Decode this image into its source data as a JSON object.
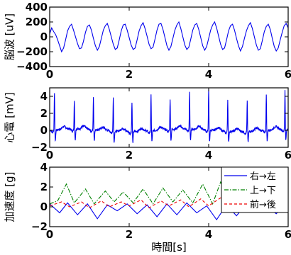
{
  "chart_data": [
    {
      "type": "line",
      "ylabel": "脳波 [uV]",
      "xlim": [
        0,
        6
      ],
      "ylim": [
        -400,
        400
      ],
      "xticks": [
        0,
        2,
        4,
        6
      ],
      "yticks": [
        -400,
        -200,
        0,
        200,
        400
      ],
      "xtick_labels": [
        "0",
        "2",
        "4",
        "6"
      ],
      "ytick_labels": [
        "−400",
        "−200",
        "0",
        "200",
        "400"
      ],
      "legend": "none",
      "series": [
        {
          "color": "#0000ee",
          "x": [
            0.0,
            0.05,
            0.1,
            0.15,
            0.2,
            0.25,
            0.3,
            0.35,
            0.4,
            0.45,
            0.5,
            0.55,
            0.6,
            0.65,
            0.7,
            0.75,
            0.8,
            0.85,
            0.9,
            0.95,
            1.0,
            1.05,
            1.1,
            1.15,
            1.2,
            1.25,
            1.3,
            1.35,
            1.4,
            1.45,
            1.5,
            1.55,
            1.6,
            1.65,
            1.7,
            1.75,
            1.8,
            1.85,
            1.9,
            1.95,
            2.0,
            2.05,
            2.1,
            2.15,
            2.2,
            2.25,
            2.3,
            2.35,
            2.4,
            2.45,
            2.5,
            2.55,
            2.6,
            2.65,
            2.7,
            2.75,
            2.8,
            2.85,
            2.9,
            2.95,
            3.0,
            3.05,
            3.1,
            3.15,
            3.2,
            3.25,
            3.3,
            3.35,
            3.4,
            3.45,
            3.5,
            3.55,
            3.6,
            3.65,
            3.7,
            3.75,
            3.8,
            3.85,
            3.9,
            3.95,
            4.0,
            4.05,
            4.1,
            4.15,
            4.2,
            4.25,
            4.3,
            4.35,
            4.4,
            4.45,
            4.5,
            4.55,
            4.6,
            4.65,
            4.7,
            4.75,
            4.8,
            4.85,
            4.9,
            4.95,
            5.0,
            5.05,
            5.1,
            5.15,
            5.2,
            5.25,
            5.3,
            5.35,
            5.4,
            5.45,
            5.5,
            5.55,
            5.6,
            5.65,
            5.7,
            5.75,
            5.8,
            5.85,
            5.9,
            5.95,
            6.0
          ],
          "y": [
            40,
            120,
            70,
            30,
            -40,
            -120,
            -200,
            -150,
            -40,
            80,
            140,
            170,
            90,
            0,
            -90,
            -160,
            -150,
            -60,
            60,
            140,
            160,
            90,
            -20,
            -120,
            -180,
            -130,
            -20,
            90,
            150,
            180,
            100,
            0,
            -100,
            -170,
            -150,
            -40,
            80,
            160,
            170,
            90,
            -10,
            -110,
            -170,
            -150,
            -40,
            80,
            150,
            190,
            110,
            10,
            -100,
            -160,
            -140,
            -30,
            90,
            170,
            180,
            100,
            -10,
            -120,
            -180,
            -130,
            -20,
            90,
            160,
            200,
            110,
            0,
            -110,
            -170,
            -140,
            -30,
            90,
            160,
            180,
            100,
            -10,
            -120,
            -180,
            -130,
            -20,
            90,
            160,
            200,
            120,
            10,
            -100,
            -170,
            -150,
            -40,
            80,
            150,
            170,
            90,
            -20,
            -120,
            -190,
            -130,
            -20,
            80,
            150,
            190,
            110,
            0,
            -110,
            -180,
            -160,
            -50,
            70,
            140,
            170,
            100,
            -20,
            -130,
            -190,
            -150,
            -40,
            60,
            150,
            180,
            120
          ]
        }
      ]
    },
    {
      "type": "line",
      "ylabel": "心電 [mV]",
      "xlim": [
        0,
        6
      ],
      "ylim": [
        -2,
        5
      ],
      "xticks": [
        0,
        2,
        4,
        6
      ],
      "yticks": [
        -2,
        0,
        2,
        4
      ],
      "xtick_labels": [
        "0",
        "2",
        "4",
        "6"
      ],
      "ytick_labels": [
        "−2",
        "0",
        "2",
        "4"
      ],
      "legend": "none",
      "series": [
        {
          "color": "#0000ee",
          "r_peak_times": [
            0.12,
            0.62,
            1.1,
            1.6,
            2.07,
            2.55,
            3.03,
            3.52,
            4.0,
            4.48,
            4.97,
            5.45,
            5.92
          ],
          "r_peak_heights": [
            4.5,
            3.5,
            3.8,
            4.0,
            3.6,
            4.3,
            3.7,
            4.4,
            4.8,
            3.8,
            3.6,
            4.2,
            4.6
          ],
          "baseline": 0.0,
          "s_trough": -1.3
        }
      ]
    },
    {
      "type": "line",
      "ylabel": "加速度 [g]",
      "xlabel": "時間[s]",
      "xlim": [
        0,
        6
      ],
      "ylim": [
        -2,
        4
      ],
      "xticks": [
        0,
        2,
        4,
        6
      ],
      "yticks": [
        -2,
        0,
        2,
        4
      ],
      "xtick_labels": [
        "0",
        "2",
        "4",
        "6"
      ],
      "ytick_labels": [
        "−2",
        "0",
        "2",
        "4"
      ],
      "legend": "top-right",
      "series": [
        {
          "name": "右→左",
          "color": "#0000ee",
          "style": "solid",
          "x": [
            0.0,
            0.25,
            0.45,
            0.7,
            0.95,
            1.2,
            1.45,
            1.7,
            1.95,
            2.2,
            2.45,
            2.7,
            2.95,
            3.2,
            3.45,
            3.7,
            3.95,
            4.2,
            4.45,
            4.7,
            4.95,
            5.2,
            5.45,
            5.7,
            5.95,
            6.0
          ],
          "y": [
            0.3,
            -0.6,
            0.4,
            -0.8,
            0.3,
            -1.2,
            0.2,
            -0.4,
            0.3,
            -0.7,
            0.2,
            -1.0,
            0.3,
            -0.8,
            0.4,
            -0.6,
            0.1,
            -1.3,
            0.2,
            -0.9,
            0.3,
            -0.5,
            0.1,
            -0.7,
            0.3,
            0.2
          ]
        },
        {
          "name": "上→下",
          "color": "#008000",
          "style": "dashdot",
          "x": [
            0.0,
            0.2,
            0.42,
            0.62,
            0.9,
            1.12,
            1.4,
            1.62,
            1.85,
            2.1,
            2.35,
            2.6,
            2.85,
            3.1,
            3.35,
            3.6,
            3.85,
            4.1,
            4.3,
            4.55,
            4.85,
            5.1,
            5.35,
            5.6,
            5.85,
            6.0
          ],
          "y": [
            0.3,
            0.6,
            2.3,
            0.4,
            1.8,
            0.3,
            1.6,
            0.5,
            1.5,
            0.4,
            1.8,
            0.3,
            1.9,
            0.5,
            1.7,
            0.4,
            2.3,
            0.3,
            2.5,
            0.4,
            1.8,
            0.5,
            1.6,
            0.3,
            1.3,
            0.6
          ]
        },
        {
          "name": "前→後",
          "color": "#ee0000",
          "style": "dashed",
          "x": [
            0.0,
            0.3,
            0.5,
            0.8,
            1.0,
            1.3,
            1.5,
            1.8,
            2.0,
            2.3,
            2.5,
            2.8,
            3.0,
            3.3,
            3.5,
            3.8,
            4.0,
            4.3,
            4.5,
            4.8,
            5.0,
            5.3,
            5.5,
            5.8,
            6.0
          ],
          "y": [
            0.1,
            0.5,
            0.0,
            0.5,
            -0.1,
            0.6,
            0.0,
            0.5,
            0.1,
            0.7,
            -0.1,
            0.6,
            0.1,
            0.7,
            0.0,
            0.8,
            0.1,
            0.9,
            -0.1,
            0.7,
            0.2,
            0.6,
            -0.2,
            0.7,
            0.3
          ]
        }
      ]
    }
  ]
}
